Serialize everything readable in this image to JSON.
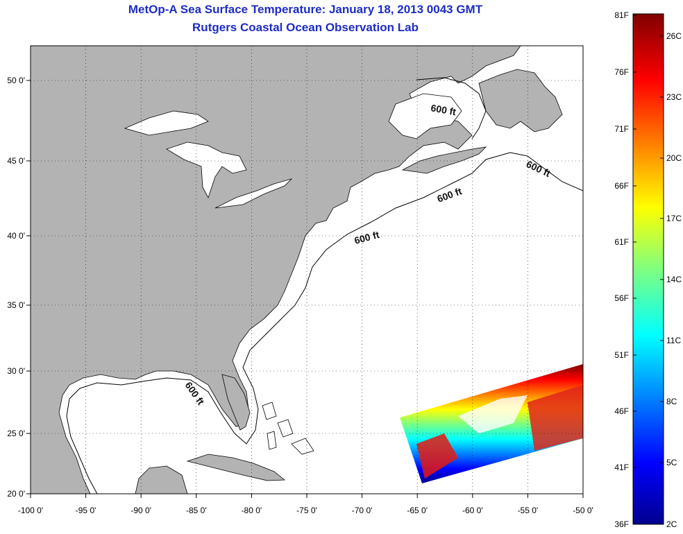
{
  "title": "MetOp-A Sea Surface Temperature:  January 18, 2013 0043 GMT",
  "subtitle": "Rutgers Coastal Ocean Observation Lab",
  "map": {
    "lon_ticks": [
      "-100 0'",
      "-95 0'",
      "-90 0'",
      "-85 0'",
      "-80 0'",
      "-75 0'",
      "-70 0'",
      "-65 0'",
      "-60 0'",
      "-55 0'",
      "-50 0'"
    ],
    "lat_ticks": [
      "50 0'",
      "45 0'",
      "40 0'",
      "35 0'",
      "30 0'",
      "25 0'",
      "20 0'"
    ],
    "depth_labels": [
      "600 ft",
      "600 ft",
      "600 ft",
      "600 ft",
      "600 ft"
    ],
    "land_color": "#b3b3b3",
    "ocean_color": "#ffffff"
  },
  "colorbar": {
    "fahrenheit": [
      "81F",
      "76F",
      "71F",
      "66F",
      "61F",
      "56F",
      "51F",
      "46F",
      "41F",
      "36F"
    ],
    "celsius": [
      "26C",
      "23C",
      "20C",
      "17C",
      "14C",
      "11C",
      "8C",
      "5C",
      "2C"
    ]
  }
}
